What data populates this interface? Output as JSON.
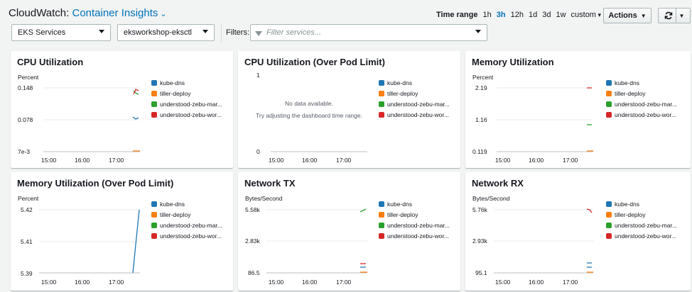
{
  "header": {
    "app": "CloudWatch:",
    "section": "Container Insights",
    "timerange_label": "Time range",
    "ranges": [
      "1h",
      "3h",
      "12h",
      "1d",
      "3d",
      "1w",
      "custom"
    ],
    "active_range": "3h",
    "actions_label": "Actions"
  },
  "filters": {
    "service_type": "EKS Services",
    "cluster": "eksworkshop-eksctl",
    "filters_label": "Filters:",
    "placeholder": "Filter services..."
  },
  "colors": {
    "accent": "#0073bb",
    "series": [
      "#1f77b4",
      "#ff7f0e",
      "#2ca02c",
      "#d62728"
    ]
  },
  "legend": [
    "kube-dns",
    "tiller-deploy",
    "understood-zebu-mar...",
    "understood-zebu-wor..."
  ],
  "xticks": [
    "15:00",
    "16:00",
    "17:00"
  ],
  "panels": [
    {
      "title": "CPU Utilization",
      "unit": "Percent",
      "yticks": [
        "0.148",
        "0.078",
        "7e-3"
      ]
    },
    {
      "title": "CPU Utilization (Over Pod Limit)",
      "unit": "",
      "yticks": [
        "1",
        "0"
      ],
      "nodata": "No data available.",
      "nodata_hint": "Try adjusting the dashboard time range."
    },
    {
      "title": "Memory Utilization",
      "unit": "Percent",
      "yticks": [
        "2.19",
        "1.16",
        "0.119"
      ]
    },
    {
      "title": "Memory Utilization (Over Pod Limit)",
      "unit": "Percent",
      "yticks": [
        "5.42",
        "5.41",
        "5.39"
      ]
    },
    {
      "title": "Network TX",
      "unit": "Bytes/Second",
      "yticks": [
        "5.58k",
        "2.83k",
        "86.5"
      ]
    },
    {
      "title": "Network RX",
      "unit": "Bytes/Second",
      "yticks": [
        "5.76k",
        "2.93k",
        "95.1"
      ]
    }
  ]
}
